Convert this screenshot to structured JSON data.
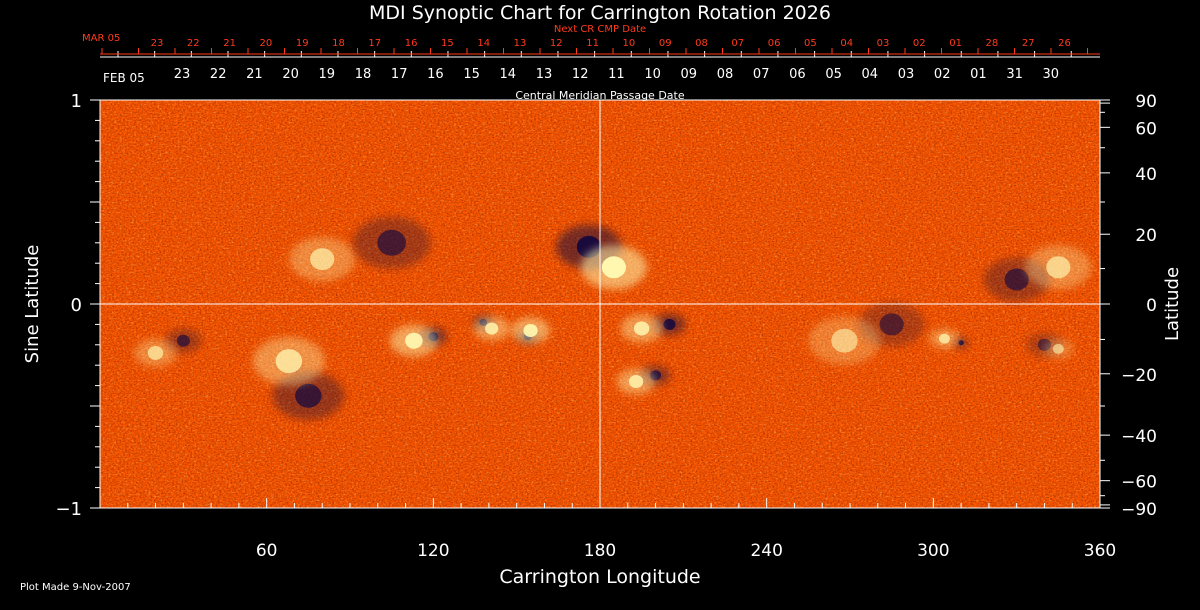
{
  "chart_data": {
    "type": "heatmap",
    "title": "MDI Synoptic Chart for Carrington Rotation 2026",
    "xlabel": "Carrington Longitude",
    "ylabel_left": "Sine Latitude",
    "ylabel_right": "Latitude",
    "top_label": "Central Meridian Passage Date",
    "next_label": "Next CR CMP Date",
    "footer": "Plot Made  9-Nov-2007",
    "xlim": [
      0,
      360
    ],
    "ylim": [
      -1,
      1
    ],
    "x_ticks": [
      60,
      120,
      180,
      240,
      300,
      360
    ],
    "y_ticks_left": [
      {
        "value": 1,
        "label": "1"
      },
      {
        "value": 0,
        "label": "0"
      },
      {
        "value": -1,
        "label": "−1"
      }
    ],
    "y_ticks_right": [
      90,
      60,
      40,
      20,
      0,
      -20,
      -40,
      -60,
      -90
    ],
    "y_ticks_right_labels": [
      "90",
      "60",
      "40",
      "20",
      "0",
      "−20",
      "−40",
      "−60",
      "−90"
    ],
    "cmp_dates": {
      "start_label": "FEB 05",
      "labels": [
        "23",
        "22",
        "21",
        "20",
        "19",
        "18",
        "17",
        "16",
        "15",
        "14",
        "13",
        "12",
        "11",
        "10",
        "09",
        "08",
        "07",
        "06",
        "05",
        "04",
        "03",
        "02",
        "01",
        "31",
        "30"
      ]
    },
    "next_cmp_dates": {
      "start_label": "MAR 05",
      "labels": [
        "23",
        "22",
        "21",
        "20",
        "19",
        "18",
        "17",
        "16",
        "15",
        "14",
        "13",
        "12",
        "11",
        "10",
        "09",
        "08",
        "07",
        "06",
        "05",
        "04",
        "03",
        "02",
        "01",
        "28",
        "27",
        "26"
      ]
    },
    "colors": {
      "background_field": "#ff5a00",
      "positive_polarity": "#fff7b0",
      "negative_polarity": "#1a0a3c",
      "axes": "#ffffff",
      "next_date_text": "#ff3a1a"
    },
    "features": [
      {
        "lon": 120,
        "sinlat": -0.16,
        "polarity": "negative",
        "strength": 1.0,
        "size": 9
      },
      {
        "lon": 113,
        "sinlat": -0.18,
        "polarity": "positive",
        "strength": 0.9,
        "size": 16
      },
      {
        "lon": 138,
        "sinlat": -0.09,
        "polarity": "negative",
        "strength": 0.9,
        "size": 7
      },
      {
        "lon": 141,
        "sinlat": -0.12,
        "polarity": "positive",
        "strength": 0.8,
        "size": 12
      },
      {
        "lon": 154,
        "sinlat": -0.16,
        "polarity": "negative",
        "strength": 0.9,
        "size": 7
      },
      {
        "lon": 155,
        "sinlat": -0.13,
        "polarity": "positive",
        "strength": 0.9,
        "size": 13
      },
      {
        "lon": 176,
        "sinlat": 0.28,
        "polarity": "negative",
        "strength": 1.0,
        "size": 22
      },
      {
        "lon": 185,
        "sinlat": 0.18,
        "polarity": "positive",
        "strength": 1.0,
        "size": 22
      },
      {
        "lon": 205,
        "sinlat": -0.1,
        "polarity": "negative",
        "strength": 0.9,
        "size": 11
      },
      {
        "lon": 195,
        "sinlat": -0.12,
        "polarity": "positive",
        "strength": 0.8,
        "size": 14
      },
      {
        "lon": 200,
        "sinlat": -0.35,
        "polarity": "negative",
        "strength": 0.8,
        "size": 10
      },
      {
        "lon": 193,
        "sinlat": -0.38,
        "polarity": "positive",
        "strength": 0.8,
        "size": 13
      },
      {
        "lon": 310,
        "sinlat": -0.19,
        "polarity": "negative",
        "strength": 0.9,
        "size": 5
      },
      {
        "lon": 304,
        "sinlat": -0.17,
        "polarity": "positive",
        "strength": 0.7,
        "size": 10
      },
      {
        "lon": 30,
        "sinlat": -0.18,
        "polarity": "negative",
        "strength": 0.6,
        "size": 12
      },
      {
        "lon": 20,
        "sinlat": -0.24,
        "polarity": "positive",
        "strength": 0.6,
        "size": 14
      },
      {
        "lon": 75,
        "sinlat": -0.45,
        "polarity": "negative",
        "strength": 0.7,
        "size": 24
      },
      {
        "lon": 68,
        "sinlat": -0.28,
        "polarity": "positive",
        "strength": 0.7,
        "size": 24
      },
      {
        "lon": 80,
        "sinlat": 0.22,
        "polarity": "positive",
        "strength": 0.6,
        "size": 22
      },
      {
        "lon": 105,
        "sinlat": 0.3,
        "polarity": "negative",
        "strength": 0.6,
        "size": 26
      },
      {
        "lon": 330,
        "sinlat": 0.12,
        "polarity": "negative",
        "strength": 0.6,
        "size": 22
      },
      {
        "lon": 345,
        "sinlat": 0.18,
        "polarity": "positive",
        "strength": 0.6,
        "size": 22
      },
      {
        "lon": 285,
        "sinlat": -0.1,
        "polarity": "negative",
        "strength": 0.5,
        "size": 22
      },
      {
        "lon": 268,
        "sinlat": -0.18,
        "polarity": "positive",
        "strength": 0.5,
        "size": 24
      },
      {
        "lon": 340,
        "sinlat": -0.2,
        "polarity": "negative",
        "strength": 0.5,
        "size": 12
      },
      {
        "lon": 345,
        "sinlat": -0.22,
        "polarity": "positive",
        "strength": 0.5,
        "size": 10
      }
    ]
  }
}
